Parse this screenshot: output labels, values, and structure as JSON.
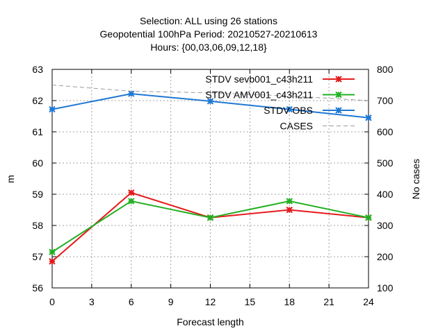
{
  "chart_data": {
    "type": "line",
    "title_lines": [
      "Selection: ALL using    26 stations",
      "Geopotential 100hPa   Period: 20210527-20210613",
      "Hours: {00,03,06,09,12,18}"
    ],
    "xlabel": "Forecast length",
    "ylabel": "m",
    "y2label": "No cases",
    "xlim": [
      0,
      24
    ],
    "ylim": [
      56,
      63
    ],
    "y2lim": [
      100,
      800
    ],
    "x_ticks": [
      0,
      3,
      6,
      9,
      12,
      15,
      18,
      21,
      24
    ],
    "y_ticks": [
      56,
      57,
      58,
      59,
      60,
      61,
      62,
      63
    ],
    "y2_ticks": [
      100,
      200,
      300,
      400,
      500,
      600,
      700,
      800
    ],
    "grid": true,
    "legend_position": "top-right",
    "series": [
      {
        "name": "STDV sevb001_c43h211",
        "color": "#e41a1c",
        "axis": "y",
        "marker": "x",
        "x": [
          0,
          6,
          12,
          18,
          24
        ],
        "y": [
          56.85,
          59.05,
          58.25,
          58.5,
          58.25
        ]
      },
      {
        "name": "STDV AMV001_c43h211",
        "color": "#22b022",
        "axis": "y",
        "marker": "x",
        "x": [
          0,
          6,
          12,
          18,
          24
        ],
        "y": [
          57.15,
          58.78,
          58.25,
          58.78,
          58.25
        ]
      },
      {
        "name": "STDV OBS",
        "color": "#1f78d4",
        "axis": "y",
        "marker": "x",
        "x": [
          0,
          6,
          12,
          18,
          24
        ],
        "y": [
          61.72,
          62.22,
          61.98,
          61.72,
          61.45
        ]
      },
      {
        "name": "CASES",
        "color": "#999999",
        "axis": "y2",
        "marker": "none",
        "dashed": true,
        "x": [
          0,
          6,
          12,
          18,
          24
        ],
        "y": [
          750,
          730,
          725,
          715,
          700
        ]
      }
    ]
  }
}
